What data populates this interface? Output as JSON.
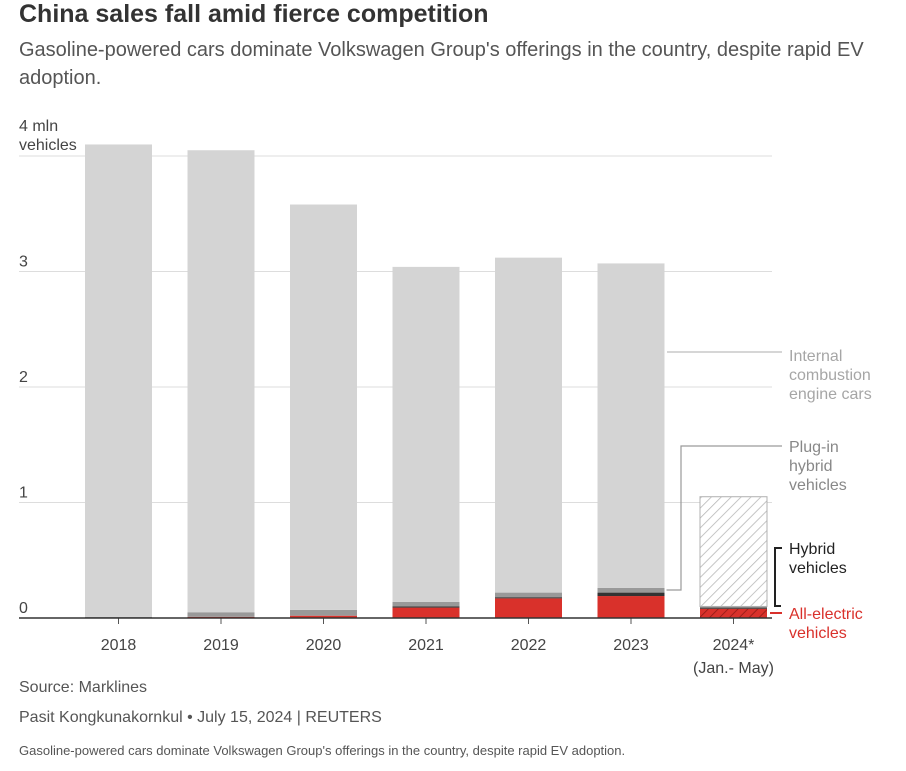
{
  "header": {
    "title": "China sales fall amid fierce competition",
    "subtitle": "Gasoline-powered cars dominate Volkswagen Group's offerings in the country, despite rapid EV adoption."
  },
  "chart_data": {
    "type": "bar",
    "stacked": true,
    "title": "China sales fall amid fierce competition",
    "subtitle": "Gasoline-powered cars dominate Volkswagen Group's offerings in the country, despite rapid EV adoption.",
    "categories": [
      "2018",
      "2019",
      "2020",
      "2021",
      "2022",
      "2023",
      "2024*"
    ],
    "category_sublabels": [
      "",
      "",
      "",
      "",
      "",
      "",
      "(Jan.- May)"
    ],
    "ylabel_line1": "4 mln",
    "ylabel_line2": "vehicles",
    "ylim": [
      0,
      4
    ],
    "yticks": [
      {
        "value": 0,
        "label": "0"
      },
      {
        "value": 1,
        "label": "1"
      },
      {
        "value": 2,
        "label": "2"
      },
      {
        "value": 3,
        "label": "3"
      },
      {
        "value": 4,
        "label": "4 mln"
      }
    ],
    "grid": true,
    "series": [
      {
        "name": "All-electric vehicles",
        "label_lines": [
          "All-electric",
          "vehicles"
        ],
        "color": "#d9312b",
        "values": [
          0.0,
          0.01,
          0.02,
          0.09,
          0.17,
          0.19,
          0.08
        ]
      },
      {
        "name": "Hybrid vehicles",
        "label_lines": [
          "Hybrid",
          "vehicles"
        ],
        "color": "#333333",
        "values": [
          0.0,
          0.0,
          0.0,
          0.01,
          0.01,
          0.03,
          0.01
        ]
      },
      {
        "name": "Plug-in hybrid vehicles",
        "label_lines": [
          "Plug-in",
          "hybrid",
          "vehicles"
        ],
        "color": "#999999",
        "values": [
          0.01,
          0.04,
          0.05,
          0.04,
          0.04,
          0.04,
          0.01
        ]
      },
      {
        "name": "Internal combustion engine cars",
        "label_lines": [
          "Internal",
          "combustion",
          "engine cars"
        ],
        "color": "#d4d4d4",
        "values": [
          4.09,
          4.0,
          3.51,
          2.9,
          2.9,
          2.81,
          0.95
        ]
      }
    ],
    "hatched_categories": [
      "2024*"
    ]
  },
  "footer": {
    "source": "Source: Marklines",
    "byline": "Pasit Kongkunakornkul • July 15, 2024 | REUTERS",
    "caption": "Gasoline-powered cars dominate Volkswagen Group's offerings in the country, despite rapid EV adoption."
  }
}
